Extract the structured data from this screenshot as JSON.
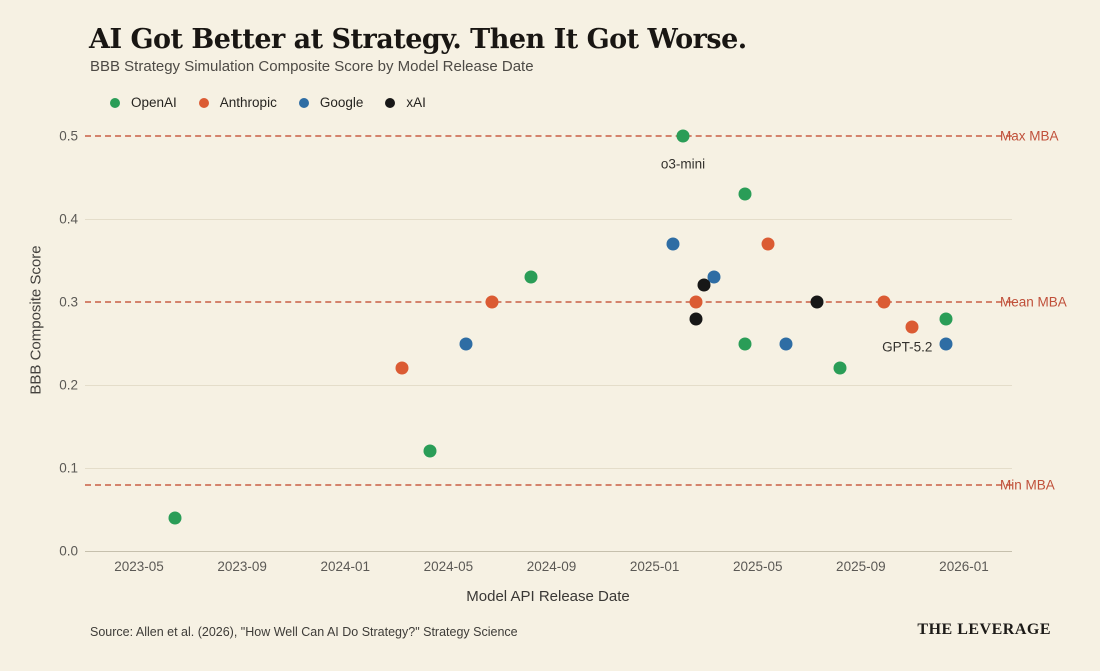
{
  "header": {
    "title": "AI Got Better at Strategy. Then It Got Worse.",
    "subtitle": "BBB Strategy Simulation Composite Score by Model Release Date"
  },
  "legend": {
    "items": [
      {
        "label": "OpenAI",
        "color": "#2a9d57"
      },
      {
        "label": "Anthropic",
        "color": "#db5b33"
      },
      {
        "label": "Google",
        "color": "#2e6da4"
      },
      {
        "label": "xAI",
        "color": "#171717"
      }
    ]
  },
  "chart_data": {
    "type": "scatter",
    "title": "AI Got Better at Strategy. Then It Got Worse.",
    "subtitle": "BBB Strategy Simulation Composite Score by Model Release Date",
    "xlabel": "Model API Release Date",
    "ylabel": "BBB Composite Score",
    "ylim": [
      0.0,
      0.52
    ],
    "y_ticks": [
      {
        "label": "0.0",
        "value": 0.0
      },
      {
        "label": "0.1",
        "value": 0.1
      },
      {
        "label": "0.2",
        "value": 0.2
      },
      {
        "label": "0.3",
        "value": 0.3
      },
      {
        "label": "0.4",
        "value": 0.4
      },
      {
        "label": "0.5",
        "value": 0.5
      }
    ],
    "x_ticks": [
      {
        "label": "2023-05",
        "t": 4
      },
      {
        "label": "2023-09",
        "t": 8
      },
      {
        "label": "2024-01",
        "t": 12
      },
      {
        "label": "2024-05",
        "t": 16
      },
      {
        "label": "2024-09",
        "t": 20
      },
      {
        "label": "2025-01",
        "t": 24
      },
      {
        "label": "2025-05",
        "t": 28
      },
      {
        "label": "2025-09",
        "t": 32
      },
      {
        "label": "2026-01",
        "t": 36
      }
    ],
    "grid_values": [
      0.1,
      0.2,
      0.4
    ],
    "ref_lines": [
      {
        "label": "Max MBA",
        "value": 0.5
      },
      {
        "label": "Mean MBA",
        "value": 0.3
      },
      {
        "label": "Min MBA",
        "value": 0.08
      }
    ],
    "series": [
      {
        "name": "OpenAI",
        "color": "#2a9d57",
        "points": [
          {
            "release": "2023-06",
            "t": 5.4,
            "score": 0.04
          },
          {
            "release": "2024-04",
            "t": 15.3,
            "score": 0.12
          },
          {
            "release": "2024-08",
            "t": 19.2,
            "score": 0.33
          },
          {
            "release": "2025-02",
            "t": 25.1,
            "score": 0.5
          },
          {
            "release": "2025-04",
            "t": 27.5,
            "score": 0.43
          },
          {
            "release": "2025-04",
            "t": 27.5,
            "score": 0.25
          },
          {
            "release": "2025-08",
            "t": 31.2,
            "score": 0.22
          },
          {
            "release": "2025-12",
            "t": 35.3,
            "score": 0.28
          }
        ]
      },
      {
        "name": "Anthropic",
        "color": "#db5b33",
        "points": [
          {
            "release": "2024-03",
            "t": 14.2,
            "score": 0.22
          },
          {
            "release": "2024-06",
            "t": 17.7,
            "score": 0.3
          },
          {
            "release": "2025-02",
            "t": 25.6,
            "score": 0.3
          },
          {
            "release": "2025-05",
            "t": 28.4,
            "score": 0.37
          },
          {
            "release": "2025-09",
            "t": 32.9,
            "score": 0.3
          },
          {
            "release": "2025-11",
            "t": 34.0,
            "score": 0.27
          }
        ]
      },
      {
        "name": "Google",
        "color": "#2e6da4",
        "points": [
          {
            "release": "2024-05",
            "t": 16.7,
            "score": 0.25
          },
          {
            "release": "2025-01",
            "t": 24.7,
            "score": 0.37
          },
          {
            "release": "2025-03",
            "t": 26.3,
            "score": 0.33
          },
          {
            "release": "2025-06",
            "t": 29.1,
            "score": 0.25
          },
          {
            "release": "2025-12",
            "t": 35.3,
            "score": 0.25
          }
        ]
      },
      {
        "name": "xAI",
        "color": "#171717",
        "points": [
          {
            "release": "2025-02",
            "t": 25.6,
            "score": 0.28
          },
          {
            "release": "2025-02",
            "t": 25.9,
            "score": 0.32
          },
          {
            "release": "2025-07",
            "t": 30.3,
            "score": 0.3
          }
        ]
      }
    ],
    "annotations": [
      {
        "text": "o3-mini",
        "t": 25.1,
        "score": 0.466
      },
      {
        "text": "GPT-5.2",
        "t": 33.8,
        "score": 0.246
      }
    ]
  },
  "footer": {
    "source": "Source: Allen et al. (2026), \"How Well Can AI Do Strategy?\" Strategy Science",
    "brand": "THE LEVERAGE"
  }
}
